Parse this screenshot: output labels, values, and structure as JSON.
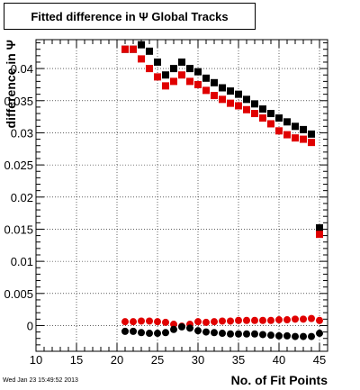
{
  "chart_data": {
    "type": "scatter",
    "title": "Fitted difference in Ψ   Global Tracks",
    "xlabel": "No. of Fit Points",
    "ylabel": "difference in Ψ",
    "xlim": [
      10,
      46
    ],
    "ylim": [
      -0.004,
      0.0445
    ],
    "xticks": [
      10,
      15,
      20,
      25,
      30,
      35,
      40,
      45
    ],
    "xtick_labels": [
      "10",
      "15",
      "20",
      "25",
      "30",
      "35",
      "40",
      "45"
    ],
    "yticks": [
      0,
      0.005,
      0.01,
      0.015,
      0.02,
      0.025,
      0.03,
      0.035,
      0.04
    ],
    "ytick_labels": [
      "0",
      "0.005",
      "0.01",
      "0.015",
      "0.02",
      "0.025",
      "0.03",
      "0.035",
      "0.04"
    ],
    "grid": true,
    "series": [
      {
        "color": "#000000",
        "marker": "square",
        "x": [
          21,
          22,
          23,
          24,
          25,
          26,
          27,
          28,
          29,
          30,
          31,
          32,
          33,
          34,
          35,
          36,
          37,
          38,
          39,
          40,
          41,
          42,
          43,
          44,
          45
        ],
        "y": [
          0.043,
          0.043,
          0.0437,
          0.0427,
          0.041,
          0.039,
          0.04,
          0.041,
          0.04,
          0.0395,
          0.0385,
          0.0378,
          0.037,
          0.0365,
          0.036,
          0.0352,
          0.0345,
          0.0337,
          0.033,
          0.0323,
          0.0317,
          0.031,
          0.0305,
          0.0298,
          0.0152
        ]
      },
      {
        "color": "#e00000",
        "marker": "square",
        "x": [
          21,
          22,
          23,
          24,
          25,
          26,
          27,
          28,
          29,
          30,
          31,
          32,
          33,
          34,
          35,
          36,
          37,
          38,
          39,
          40,
          41,
          42,
          43,
          44,
          45
        ],
        "y": [
          0.043,
          0.043,
          0.0415,
          0.04,
          0.0387,
          0.0373,
          0.038,
          0.039,
          0.038,
          0.0375,
          0.0366,
          0.0358,
          0.0352,
          0.0346,
          0.0342,
          0.0336,
          0.033,
          0.0323,
          0.0314,
          0.0303,
          0.0297,
          0.0292,
          0.029,
          0.0285,
          0.0142
        ]
      },
      {
        "color": "#e00000",
        "marker": "circle",
        "x": [
          21,
          22,
          23,
          24,
          25,
          26,
          27,
          28,
          29,
          30,
          31,
          32,
          33,
          34,
          35,
          36,
          37,
          38,
          39,
          40,
          41,
          42,
          43,
          44,
          45
        ],
        "y": [
          0.0006,
          0.0006,
          0.0007,
          0.0007,
          0.0006,
          0.0005,
          0.0002,
          -0.0001,
          0.0002,
          0.0006,
          0.0005,
          0.0006,
          0.0007,
          0.0007,
          0.0008,
          0.0008,
          0.0008,
          0.0008,
          0.0008,
          0.0009,
          0.0009,
          0.001,
          0.001,
          0.0011,
          0.0008
        ]
      },
      {
        "color": "#000000",
        "marker": "circle",
        "x": [
          21,
          22,
          23,
          24,
          25,
          26,
          27,
          28,
          29,
          30,
          31,
          32,
          33,
          34,
          35,
          36,
          37,
          38,
          39,
          40,
          41,
          42,
          43,
          44,
          45
        ],
        "y": [
          -0.0009,
          -0.0009,
          -0.0011,
          -0.0012,
          -0.0012,
          -0.0011,
          -0.0006,
          -0.0002,
          -0.0004,
          -0.0008,
          -0.001,
          -0.0011,
          -0.0012,
          -0.0013,
          -0.0013,
          -0.0013,
          -0.0013,
          -0.0014,
          -0.0015,
          -0.0016,
          -0.0016,
          -0.0017,
          -0.0017,
          -0.0017,
          -0.0012
        ]
      }
    ]
  },
  "footer": {
    "date": "Wed Jan 23 15:49:52 2013"
  }
}
